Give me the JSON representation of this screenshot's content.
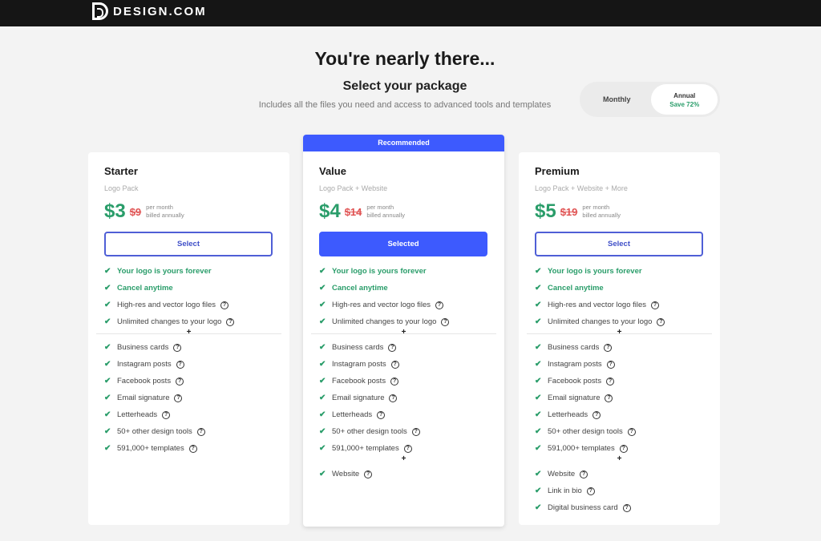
{
  "header": {
    "brand": "DESIGN.COM"
  },
  "page": {
    "title": "You're nearly there...",
    "subtitle": "Select your package",
    "description": "Includes all the files you need and access to advanced tools and templates"
  },
  "billing_toggle": {
    "monthly": "Monthly",
    "annual": "Annual",
    "annual_save": "Save 72%",
    "selected": "Annual"
  },
  "plans": [
    {
      "name": "Starter",
      "subtitle": "Logo Pack",
      "price": "$3",
      "old_price": "$9",
      "note1": "per month",
      "note2": "billed annually",
      "button": "Select",
      "selected": false,
      "recommended": "",
      "features_top": [
        "Your logo is yours forever",
        "Cancel anytime",
        "High-res and vector logo files",
        "Unlimited changes to your logo"
      ],
      "features_mid": [
        "Business cards",
        "Instagram posts",
        "Facebook posts",
        "Email signature",
        "Letterheads",
        "50+ other design tools",
        "591,000+ templates"
      ],
      "features_extra": []
    },
    {
      "name": "Value",
      "subtitle": "Logo Pack + Website",
      "price": "$4",
      "old_price": "$14",
      "note1": "per month",
      "note2": "billed annually",
      "button": "Selected",
      "selected": true,
      "recommended": "Recommended",
      "features_top": [
        "Your logo is yours forever",
        "Cancel anytime",
        "High-res and vector logo files",
        "Unlimited changes to your logo"
      ],
      "features_mid": [
        "Business cards",
        "Instagram posts",
        "Facebook posts",
        "Email signature",
        "Letterheads",
        "50+ other design tools",
        "591,000+ templates"
      ],
      "features_extra": [
        "Website"
      ]
    },
    {
      "name": "Premium",
      "subtitle": "Logo Pack + Website + More",
      "price": "$5",
      "old_price": "$19",
      "note1": "per month",
      "note2": "billed annually",
      "button": "Select",
      "selected": false,
      "recommended": "",
      "features_top": [
        "Your logo is yours forever",
        "Cancel anytime",
        "High-res and vector logo files",
        "Unlimited changes to your logo"
      ],
      "features_mid": [
        "Business cards",
        "Instagram posts",
        "Facebook posts",
        "Email signature",
        "Letterheads",
        "50+ other design tools",
        "591,000+ templates"
      ],
      "features_extra": [
        "Website",
        "Link in bio",
        "Digital business card"
      ]
    }
  ],
  "colors": {
    "accent": "#3d5afe",
    "price": "#2a9d6a",
    "old_price": "#e05252"
  }
}
